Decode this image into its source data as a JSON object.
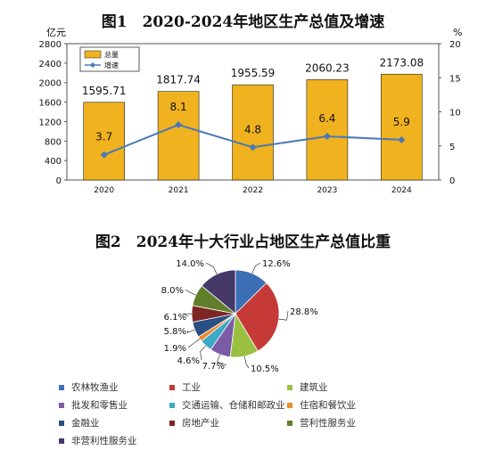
{
  "chart_data": [
    {
      "type": "bar",
      "title": "图1　2020-2024年地区生产总值及增速",
      "categories": [
        "2020",
        "2021",
        "2022",
        "2023",
        "2024"
      ],
      "series": [
        {
          "name": "总量",
          "type": "bar",
          "axis": "left",
          "values": [
            1595.71,
            1817.74,
            1955.59,
            2060.23,
            2173.08
          ],
          "color": "#f0b21e"
        },
        {
          "name": "增速",
          "type": "line",
          "axis": "right",
          "values": [
            3.7,
            8.1,
            4.8,
            6.4,
            5.9
          ],
          "color": "#4a78b8"
        }
      ],
      "ylabel": "亿元",
      "y2label": "%",
      "ylim": [
        0,
        2800
      ],
      "y2lim": [
        0,
        20
      ],
      "yticks": [
        "0",
        "400",
        "800",
        "1200",
        "1600",
        "2000",
        "2400",
        "2800"
      ],
      "y2ticks": [
        "0",
        "5",
        "10",
        "15",
        "20"
      ],
      "legend_position": "top-left"
    },
    {
      "type": "pie",
      "title": "图2　2024年十大行业占地区生产总值比重",
      "labels": [
        "农林牧渔业",
        "工业",
        "建筑业",
        "批发和零售业",
        "交通运输、仓储和邮政业",
        "住宿和餐饮业",
        "金融业",
        "房地产业",
        "营利性服务业",
        "非营利性服务业"
      ],
      "values": [
        12.6,
        28.8,
        10.5,
        7.7,
        4.6,
        1.9,
        5.8,
        6.1,
        8.0,
        14.0
      ],
      "value_labels": [
        "12.6%",
        "28.8%",
        "10.5%",
        "7.7%",
        "4.6%",
        "1.9%",
        "5.8%",
        "6.1%",
        "8.0%",
        "14.0%"
      ],
      "colors": [
        "#3c6fb6",
        "#c53a36",
        "#9ac041",
        "#7a5ba6",
        "#3ea8c6",
        "#f08a2a",
        "#2a4f85",
        "#7d2624",
        "#5f7f2a",
        "#463869"
      ],
      "legend_position": "bottom"
    }
  ]
}
